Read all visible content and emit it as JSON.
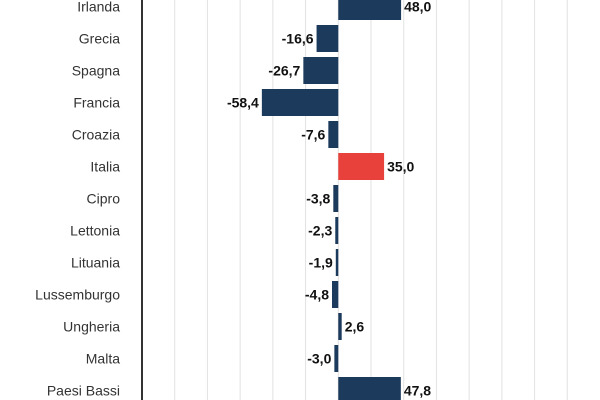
{
  "chart_data": {
    "type": "bar",
    "orientation": "horizontal",
    "title": "",
    "xlabel": "",
    "ylabel": "",
    "categories": [
      "Irlanda",
      "Grecia",
      "Spagna",
      "Francia",
      "Croazia",
      "Italia",
      "Cipro",
      "Lettonia",
      "Lituania",
      "Lussemburgo",
      "Ungheria",
      "Malta",
      "Paesi Bassi"
    ],
    "values": [
      48.0,
      -16.6,
      -26.7,
      -58.4,
      -7.6,
      35.0,
      -3.8,
      -2.3,
      -1.9,
      -4.8,
      2.6,
      -3.0,
      47.8
    ],
    "value_labels": [
      "48,0",
      "-16,6",
      "-26,7",
      "-58,4",
      "-7,6",
      "35,0",
      "-3,8",
      "-2,3",
      "-1,9",
      "-4,8",
      "2,6",
      "-3,0",
      "47,8"
    ],
    "highlight_category": "Italia",
    "xlim": [
      -150,
      200
    ],
    "grid": true,
    "colors": {
      "bar": "#1b3a5c",
      "highlight": "#e8403a",
      "grid": "#e2e2e2"
    }
  }
}
